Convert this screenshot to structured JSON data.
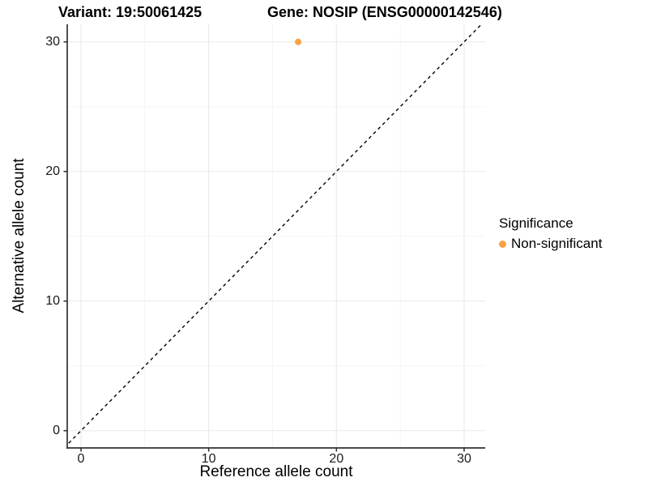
{
  "chart_data": {
    "type": "scatter",
    "title_left": "Variant: 19:50061425",
    "title_right": "Gene: NOSIP (ENSG00000142546)",
    "xlabel": "Reference allele count",
    "ylabel": "Alternative allele count",
    "x_ticks": [
      0,
      10,
      20,
      30
    ],
    "y_ticks": [
      0,
      10,
      20,
      30
    ],
    "x_minor_ticks": [
      5,
      15,
      25
    ],
    "y_minor_ticks": [
      5,
      15,
      25
    ],
    "xlim": [
      -1.1,
      31.6
    ],
    "ylim": [
      -1.35,
      31.4
    ],
    "grid": true,
    "series": [
      {
        "name": "Non-significant",
        "color": "#F9A242",
        "points": [
          {
            "x": 17,
            "y": 30
          }
        ]
      }
    ],
    "reference_line": {
      "style": "dashed",
      "slope": 1,
      "intercept": 0,
      "color": "#000000"
    },
    "legend": {
      "title": "Significance",
      "position": "right",
      "items": [
        {
          "label": "Non-significant",
          "color": "#F9A242"
        }
      ]
    }
  },
  "colors": {
    "background": "#FFFFFF",
    "grid_major": "#EBEBEB",
    "grid_minor": "#F5F5F5",
    "axis_line": "#333333",
    "tick_mark": "#333333",
    "text": "#000000",
    "point": "#F9A242"
  }
}
